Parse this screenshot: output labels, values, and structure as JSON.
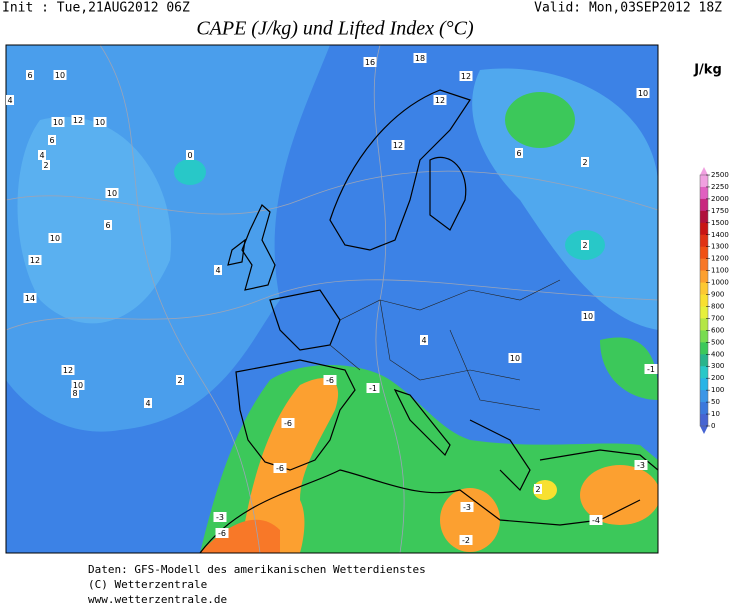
{
  "header": {
    "init": "Init : Tue,21AUG2012 06Z",
    "valid": "Valid: Mon,03SEP2012 18Z",
    "title": "CAPE (J/kg) und Lifted Index (°C)"
  },
  "colorbar": {
    "unit": "J/kg",
    "ticks": [
      2500,
      2250,
      2000,
      1750,
      1500,
      1400,
      1300,
      1200,
      1100,
      1000,
      900,
      800,
      700,
      600,
      500,
      400,
      300,
      200,
      100,
      50,
      10,
      0
    ],
    "colors": [
      "#f0a0e0",
      "#e060c0",
      "#c8287f",
      "#b0103c",
      "#c81414",
      "#e03214",
      "#f05014",
      "#f87828",
      "#fca030",
      "#fcc832",
      "#f8e030",
      "#e6f03c",
      "#b4e646",
      "#78dc50",
      "#3cc85a",
      "#28b48c",
      "#28c8c8",
      "#28b4e6",
      "#3c96e6",
      "#3c78dc",
      "#4664d2"
    ]
  },
  "map_labels": [
    "10",
    "6",
    "4",
    "10",
    "12",
    "10",
    "6",
    "4",
    "2",
    "0",
    "10",
    "6",
    "10",
    "12",
    "14",
    "4",
    "12",
    "10",
    "8",
    "4",
    "2",
    "16",
    "18",
    "12",
    "10",
    "12",
    "12",
    "6",
    "2",
    "2",
    "10",
    "4",
    "10",
    "-6",
    "-1",
    "-6",
    "-6",
    "-3",
    "-6",
    "-3",
    "-2",
    "-4",
    "-3",
    "-1",
    "2"
  ],
  "footer": [
    "Daten: GFS-Modell des amerikanischen Wetterdienstes",
    "(C) Wetterzentrale",
    "www.wetterzentrale.de"
  ]
}
